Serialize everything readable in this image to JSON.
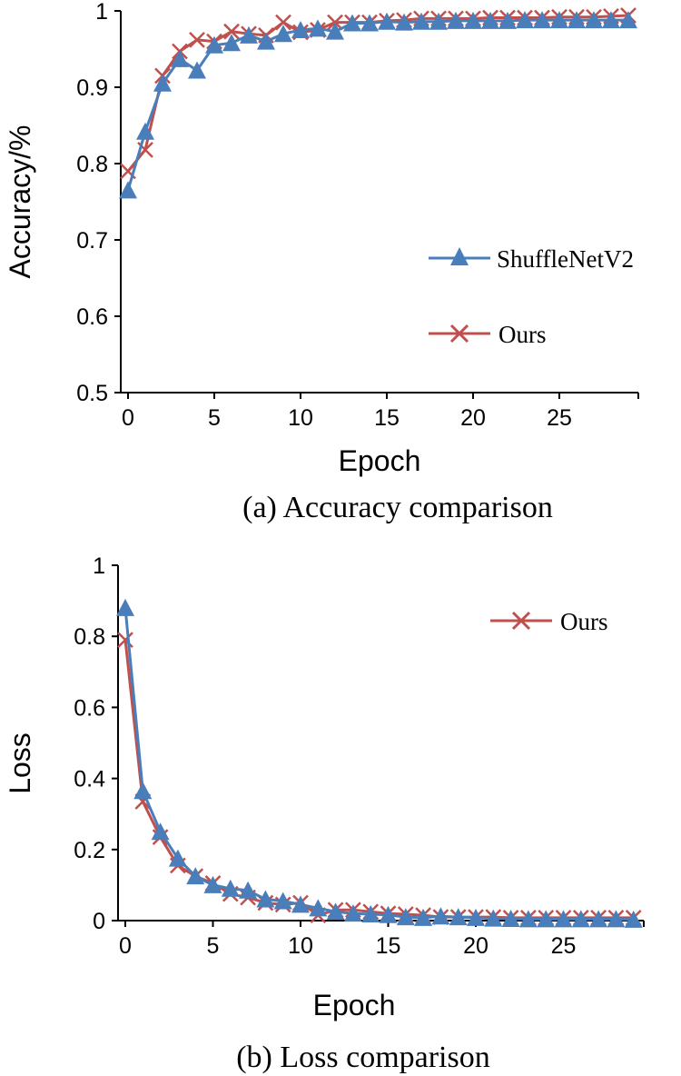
{
  "chart_data": [
    {
      "type": "line",
      "caption": "(a) Accuracy comparison",
      "xlabel": "Epoch",
      "ylabel": "Accuracy/%",
      "xlim": [
        0,
        30
      ],
      "ylim": [
        0.5,
        1
      ],
      "xticks": [
        "0",
        "5",
        "10",
        "15",
        "20",
        "25"
      ],
      "yticks": [
        "0.5",
        "0.6",
        "0.7",
        "0.8",
        "0.9",
        "1"
      ],
      "x": [
        0,
        1,
        2,
        3,
        4,
        5,
        6,
        7,
        8,
        9,
        10,
        11,
        12,
        13,
        14,
        15,
        16,
        17,
        18,
        19,
        20,
        21,
        22,
        23,
        24,
        25,
        26,
        27,
        28,
        29
      ],
      "series": [
        {
          "name": "ShuffleNetV2",
          "color": "#4a7ebb",
          "marker": "triangle",
          "values": [
            0.765,
            0.842,
            0.905,
            0.937,
            0.922,
            0.955,
            0.958,
            0.968,
            0.96,
            0.97,
            0.975,
            0.977,
            0.973,
            0.984,
            0.984,
            0.986,
            0.985,
            0.986,
            0.986,
            0.987,
            0.987,
            0.987,
            0.987,
            0.988,
            0.988,
            0.988,
            0.988,
            0.988,
            0.988,
            0.988
          ]
        },
        {
          "name": "Ours",
          "color": "#c0504d",
          "marker": "x",
          "values": [
            0.79,
            0.818,
            0.915,
            0.947,
            0.962,
            0.96,
            0.973,
            0.97,
            0.968,
            0.985,
            0.972,
            0.975,
            0.985,
            0.985,
            0.985,
            0.987,
            0.988,
            0.99,
            0.99,
            0.99,
            0.99,
            0.991,
            0.991,
            0.991,
            0.991,
            0.992,
            0.992,
            0.992,
            0.993,
            0.994
          ]
        }
      ],
      "legend": [
        "ShuffleNetV2",
        "Ours"
      ],
      "legend_position": "right-middle"
    },
    {
      "type": "line",
      "caption": "(b) Loss comparison",
      "xlabel": "Epoch",
      "ylabel": "Loss",
      "xlim": [
        0,
        30
      ],
      "ylim": [
        0,
        1
      ],
      "xticks": [
        "0",
        "5",
        "10",
        "15",
        "20",
        "25"
      ],
      "yticks": [
        "0",
        "0.2",
        "0.4",
        "0.6",
        "0.8",
        "1"
      ],
      "x": [
        0,
        1,
        2,
        3,
        4,
        5,
        6,
        7,
        8,
        9,
        10,
        11,
        12,
        13,
        14,
        15,
        16,
        17,
        18,
        19,
        20,
        21,
        22,
        23,
        24,
        25,
        26,
        27,
        28,
        29
      ],
      "series": [
        {
          "name": "ShuffleNetV2",
          "color": "#4a7ebb",
          "marker": "triangle",
          "values": [
            0.88,
            0.365,
            0.25,
            0.175,
            0.125,
            0.1,
            0.09,
            0.085,
            0.06,
            0.055,
            0.045,
            0.035,
            0.025,
            0.02,
            0.018,
            0.016,
            0.01,
            0.008,
            0.012,
            0.01,
            0.008,
            0.006,
            0.005,
            0.004,
            0.004,
            0.004,
            0.004,
            0.004,
            0.004,
            0.003
          ]
        },
        {
          "name": "Ours",
          "color": "#c0504d",
          "marker": "x",
          "values": [
            0.79,
            0.335,
            0.235,
            0.155,
            0.125,
            0.105,
            0.075,
            0.065,
            0.05,
            0.045,
            0.05,
            0.015,
            0.03,
            0.03,
            0.025,
            0.02,
            0.018,
            0.015,
            0.01,
            0.01,
            0.01,
            0.01,
            0.008,
            0.008,
            0.008,
            0.008,
            0.008,
            0.008,
            0.008,
            0.008
          ]
        }
      ],
      "legend": [
        "Ours"
      ],
      "legend_position": "top-right"
    }
  ]
}
